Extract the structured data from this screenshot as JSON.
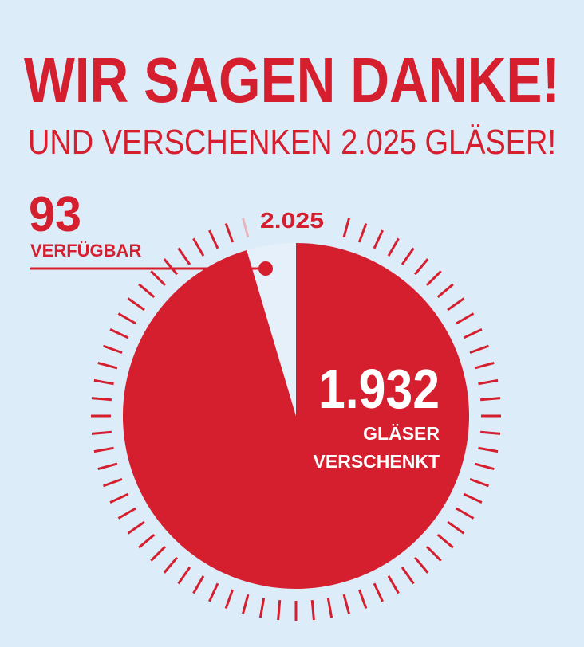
{
  "chart_data": {
    "type": "pie",
    "title": "WIR SAGEN DANKE!",
    "subtitle": "UND VERSCHENKEN 2.025 GLÄSER!",
    "total_label": "2.025",
    "categories": [
      "GLÄSER VERSCHENKT",
      "VERFÜGBAR"
    ],
    "values": [
      1932,
      93
    ],
    "value_labels": [
      "1.932",
      "93"
    ],
    "colors": [
      "#d51f2e",
      "#e6f0fa"
    ],
    "background": "#dcecf9"
  }
}
